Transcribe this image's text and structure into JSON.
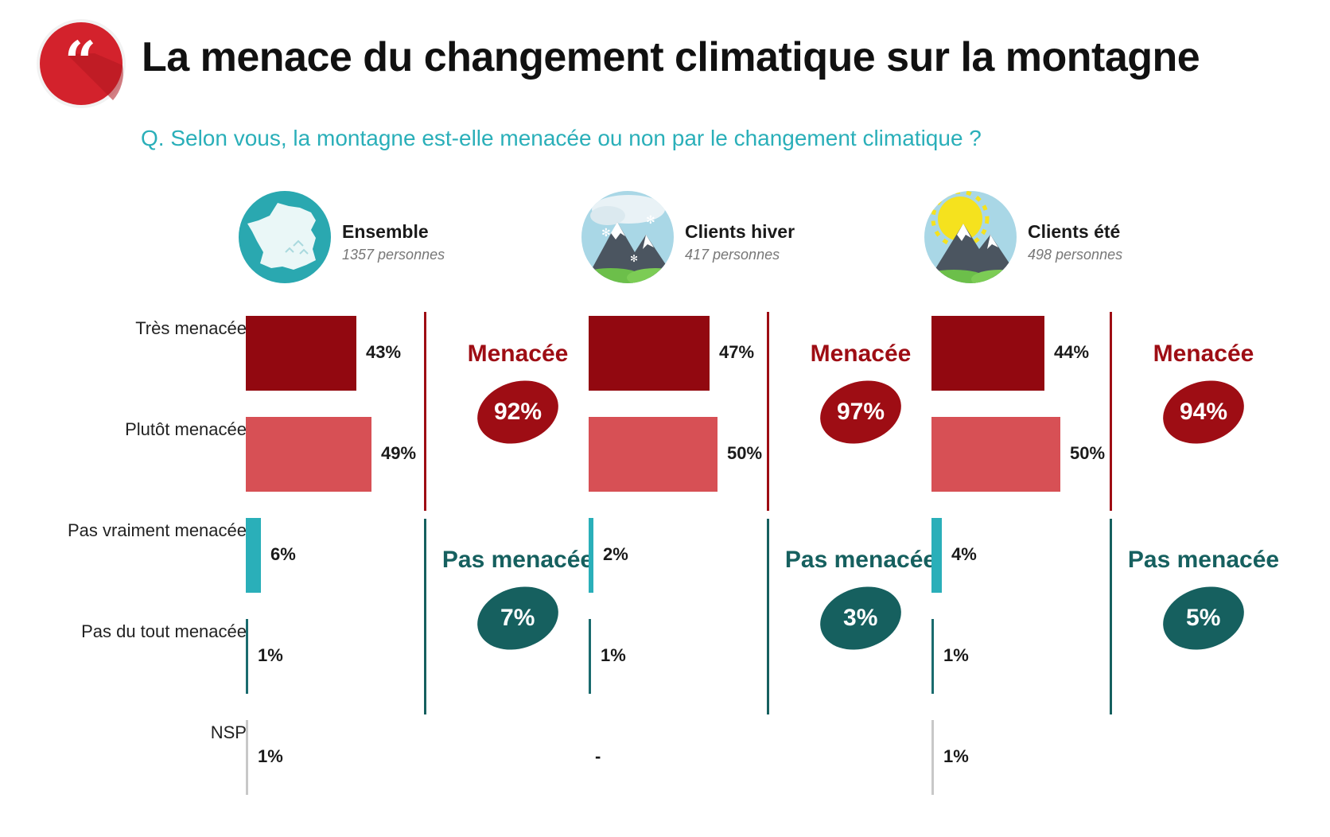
{
  "header": {
    "title": "La menace du changement climatique sur la montagne",
    "subtitle": "Q. Selon vous, la montagne est-elle menacée ou non par le changement climatique ?"
  },
  "colors": {
    "tres": "#920810",
    "plutot": "#d75055",
    "pas_vraiment": "#2aafb9",
    "pas_du_tout": "#1a6b6e",
    "nsp": "#c8c8c8",
    "menacee": "#9e0d14",
    "pas_menacee": "#16605f",
    "logo": "#d3222c",
    "subtitle": "#2aafb9"
  },
  "logo": {
    "icon": "quote-icon"
  },
  "chart_data": {
    "type": "bar",
    "orientation": "horizontal",
    "categories": [
      "Très menacée",
      "Plutôt menacée",
      "Pas vraiment menacée",
      "Pas du tout menacée",
      "NSP"
    ],
    "groups": [
      {
        "name": "Ensemble",
        "count": "1357 personnes",
        "icon": "france-map-icon",
        "values": [
          43,
          49,
          6,
          1,
          1
        ],
        "labels": [
          "43%",
          "49%",
          "6%",
          "1%",
          "1%"
        ],
        "menacee_label": "Menacée",
        "menacee": "92%",
        "pas_menacee_label": "Pas menacée",
        "pas_menacee": "7%"
      },
      {
        "name": "Clients hiver",
        "count": "417 personnes",
        "icon": "snowy-mountain-icon",
        "values": [
          47,
          50,
          2,
          1,
          0
        ],
        "labels": [
          "47%",
          "50%",
          "2%",
          "1%",
          "-"
        ],
        "menacee_label": "Menacée",
        "menacee": "97%",
        "pas_menacee_label": "Pas menacée",
        "pas_menacee": "3%"
      },
      {
        "name": "Clients été",
        "count": "498 personnes",
        "icon": "sunny-mountain-icon",
        "values": [
          44,
          50,
          4,
          1,
          1
        ],
        "labels": [
          "44%",
          "50%",
          "4%",
          "1%",
          "1%"
        ],
        "menacee_label": "Menacée",
        "menacee": "94%",
        "pas_menacee_label": "Pas menacée",
        "pas_menacee": "5%"
      }
    ]
  }
}
